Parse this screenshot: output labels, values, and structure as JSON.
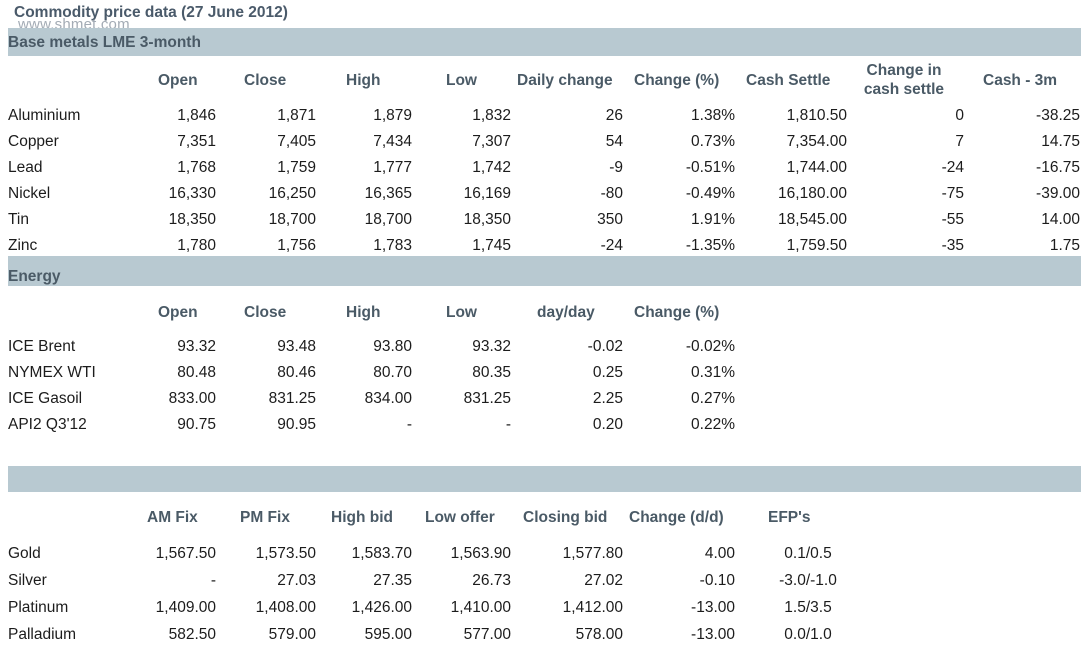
{
  "title": "Commodity price data (27 June 2012)",
  "watermark": "www.shmet.com",
  "base_metals": {
    "heading": "Base metals LME 3-month",
    "headers": [
      "Open",
      "Close",
      "High",
      "Low",
      "Daily change",
      "Change (%)",
      "Cash Settle",
      "Change in cash settle",
      "Cash - 3m"
    ],
    "rows": [
      {
        "name": "Aluminium",
        "values": [
          "1,846",
          "1,871",
          "1,879",
          "1,832",
          "26",
          "1.38%",
          "1,810.50",
          "0",
          "-38.25"
        ]
      },
      {
        "name": "Copper",
        "values": [
          "7,351",
          "7,405",
          "7,434",
          "7,307",
          "54",
          "0.73%",
          "7,354.00",
          "7",
          "14.75"
        ]
      },
      {
        "name": "Lead",
        "values": [
          "1,768",
          "1,759",
          "1,777",
          "1,742",
          "-9",
          "-0.51%",
          "1,744.00",
          "-24",
          "-16.75"
        ]
      },
      {
        "name": "Nickel",
        "values": [
          "16,330",
          "16,250",
          "16,365",
          "16,169",
          "-80",
          "-0.49%",
          "16,180.00",
          "-75",
          "-39.00"
        ]
      },
      {
        "name": "Tin",
        "values": [
          "18,350",
          "18,700",
          "18,700",
          "18,350",
          "350",
          "1.91%",
          "18,545.00",
          "-55",
          "14.00"
        ]
      },
      {
        "name": "Zinc",
        "values": [
          "1,780",
          "1,756",
          "1,783",
          "1,745",
          "-24",
          "-1.35%",
          "1,759.50",
          "-35",
          "1.75"
        ]
      }
    ]
  },
  "energy": {
    "heading": "Energy",
    "headers": [
      "Open",
      "Close",
      "High",
      "Low",
      "day/day",
      "Change (%)"
    ],
    "rows": [
      {
        "name": "ICE Brent",
        "values": [
          "93.32",
          "93.48",
          "93.80",
          "93.32",
          "-0.02",
          "-0.02%"
        ]
      },
      {
        "name": "NYMEX WTI",
        "values": [
          "80.48",
          "80.46",
          "80.70",
          "80.35",
          "0.25",
          "0.31%"
        ]
      },
      {
        "name": "ICE Gasoil",
        "values": [
          "833.00",
          "831.25",
          "834.00",
          "831.25",
          "2.25",
          "0.27%"
        ]
      },
      {
        "name": "API2 Q3'12",
        "values": [
          "90.75",
          "90.95",
          "-",
          "-",
          "0.20",
          "0.22%"
        ]
      }
    ]
  },
  "precious": {
    "heading": "",
    "headers": [
      "AM Fix",
      "PM Fix",
      "High bid",
      "Low offer",
      "Closing bid",
      "Change (d/d)",
      "EFP's"
    ],
    "rows": [
      {
        "name": "Gold",
        "values": [
          "1,567.50",
          "1,573.50",
          "1,583.70",
          "1,563.90",
          "1,577.80",
          "4.00",
          "0.1/0.5"
        ]
      },
      {
        "name": "Silver",
        "values": [
          "-",
          "27.03",
          "27.35",
          "26.73",
          "27.02",
          "-0.10",
          "-3.0/-1.0"
        ]
      },
      {
        "name": "Platinum",
        "values": [
          "1,409.00",
          "1,408.00",
          "1,426.00",
          "1,410.00",
          "1,412.00",
          "-13.00",
          "1.5/3.5"
        ]
      },
      {
        "name": "Palladium",
        "values": [
          "582.50",
          "579.00",
          "595.00",
          "577.00",
          "578.00",
          "-13.00",
          "0.0/1.0"
        ]
      }
    ]
  }
}
